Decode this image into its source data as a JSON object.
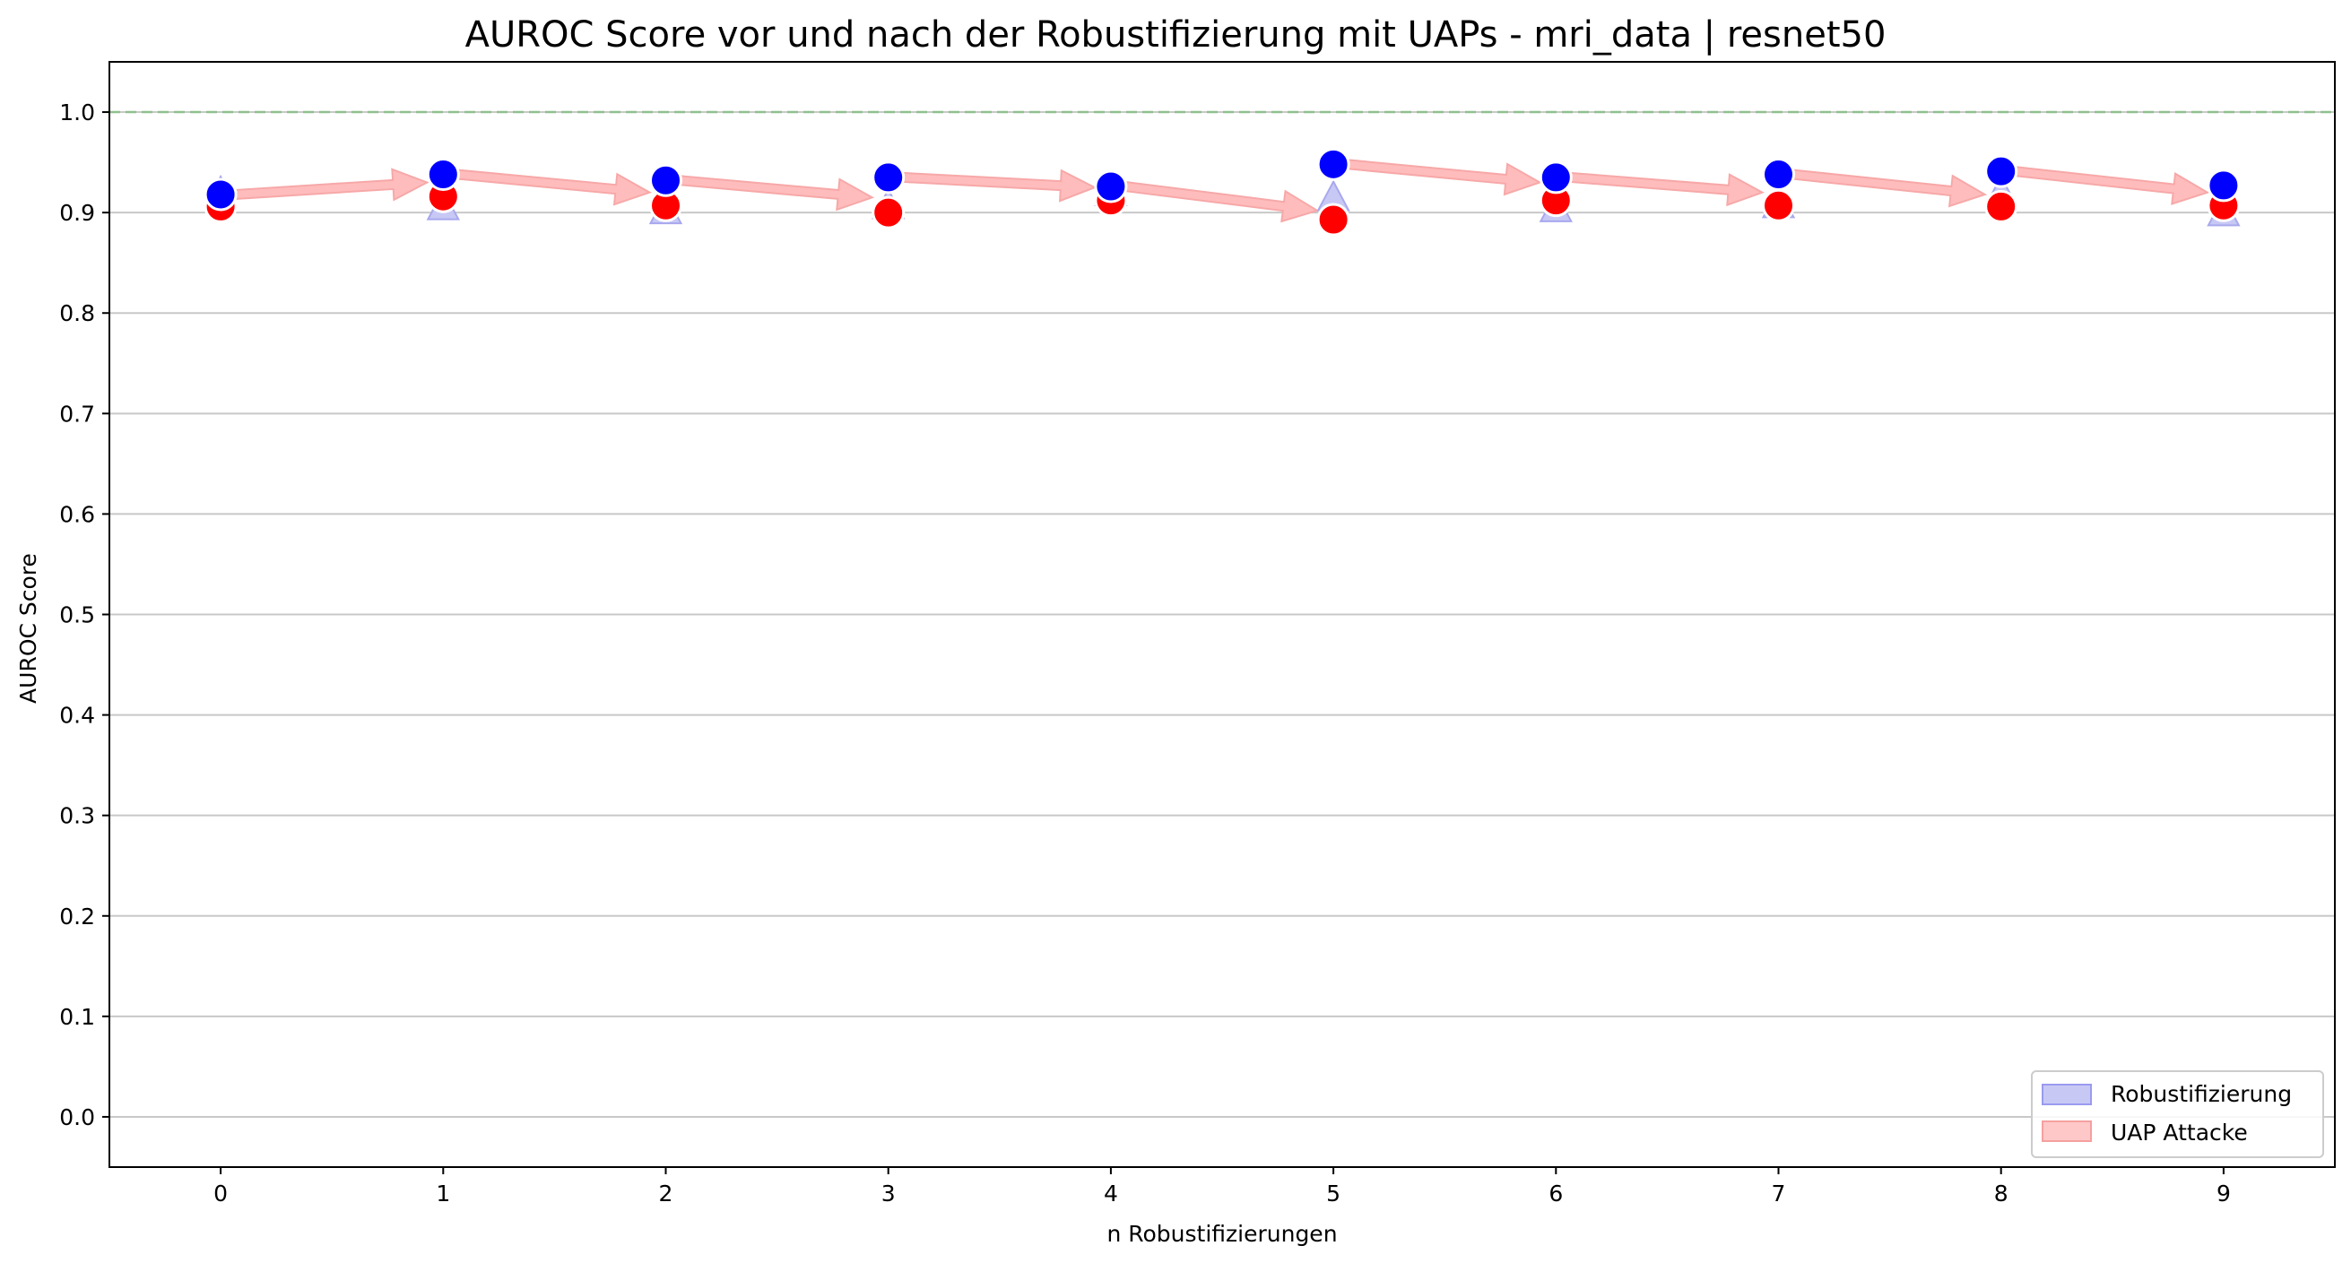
{
  "chart_data": {
    "type": "scatter",
    "title": "AUROC Score vor und nach der Robustifizierung mit UAPs - mri_data | resnet50",
    "xlabel": "n Robustifizierungen",
    "ylabel": "AUROC Score",
    "xlim": [
      -0.5,
      9.5
    ],
    "ylim": [
      -0.05,
      1.05
    ],
    "x_ticks": [
      "0",
      "1",
      "2",
      "3",
      "4",
      "5",
      "6",
      "7",
      "8",
      "9"
    ],
    "y_ticks": [
      "0.0",
      "0.1",
      "0.2",
      "0.3",
      "0.4",
      "0.5",
      "0.6",
      "0.7",
      "0.8",
      "0.9",
      "1.0"
    ],
    "y_grid": true,
    "reference_line": {
      "y": 1.0,
      "style": "dashed",
      "color": "#8fbf8f"
    },
    "x": [
      0,
      1,
      2,
      3,
      4,
      5,
      6,
      7,
      8,
      9
    ],
    "series": [
      {
        "marker": "circle",
        "color": "#0000ff",
        "values": [
          0.918,
          0.938,
          0.932,
          0.935,
          0.926,
          0.948,
          0.935,
          0.938,
          0.941,
          0.927
        ]
      },
      {
        "marker": "circle",
        "color": "#ff0000",
        "values": [
          0.906,
          0.916,
          0.907,
          0.9,
          0.912,
          0.893,
          0.912,
          0.907,
          0.906,
          0.907
        ]
      },
      {
        "marker": "triangle",
        "color": "#c8c8f5",
        "values": [
          0.918,
          0.904,
          0.9,
          0.905,
          0.918,
          0.913,
          0.902,
          0.906,
          0.918,
          0.898
        ]
      }
    ],
    "arrows": {
      "color": "#ffbcbc",
      "description": "from blue point at x to red point at x+1",
      "segments": [
        {
          "from": [
            0,
            0.918
          ],
          "to": [
            1,
            0.93
          ]
        },
        {
          "from": [
            1,
            0.938
          ],
          "to": [
            2,
            0.92
          ]
        },
        {
          "from": [
            2,
            0.932
          ],
          "to": [
            3,
            0.915
          ]
        },
        {
          "from": [
            3,
            0.935
          ],
          "to": [
            4,
            0.925
          ]
        },
        {
          "from": [
            4,
            0.926
          ],
          "to": [
            5,
            0.902
          ]
        },
        {
          "from": [
            5,
            0.948
          ],
          "to": [
            6,
            0.93
          ]
        },
        {
          "from": [
            6,
            0.935
          ],
          "to": [
            7,
            0.92
          ]
        },
        {
          "from": [
            7,
            0.938
          ],
          "to": [
            8,
            0.918
          ]
        },
        {
          "from": [
            8,
            0.941
          ],
          "to": [
            9,
            0.92
          ]
        }
      ]
    },
    "legend": {
      "position": "lower right",
      "entries": [
        {
          "label": "Robustifizierung",
          "color": "#c8c8f5",
          "edge": "#9a9af0"
        },
        {
          "label": "UAP Attacke",
          "color": "#ffc8c8",
          "edge": "#f5a0a0"
        }
      ]
    }
  }
}
